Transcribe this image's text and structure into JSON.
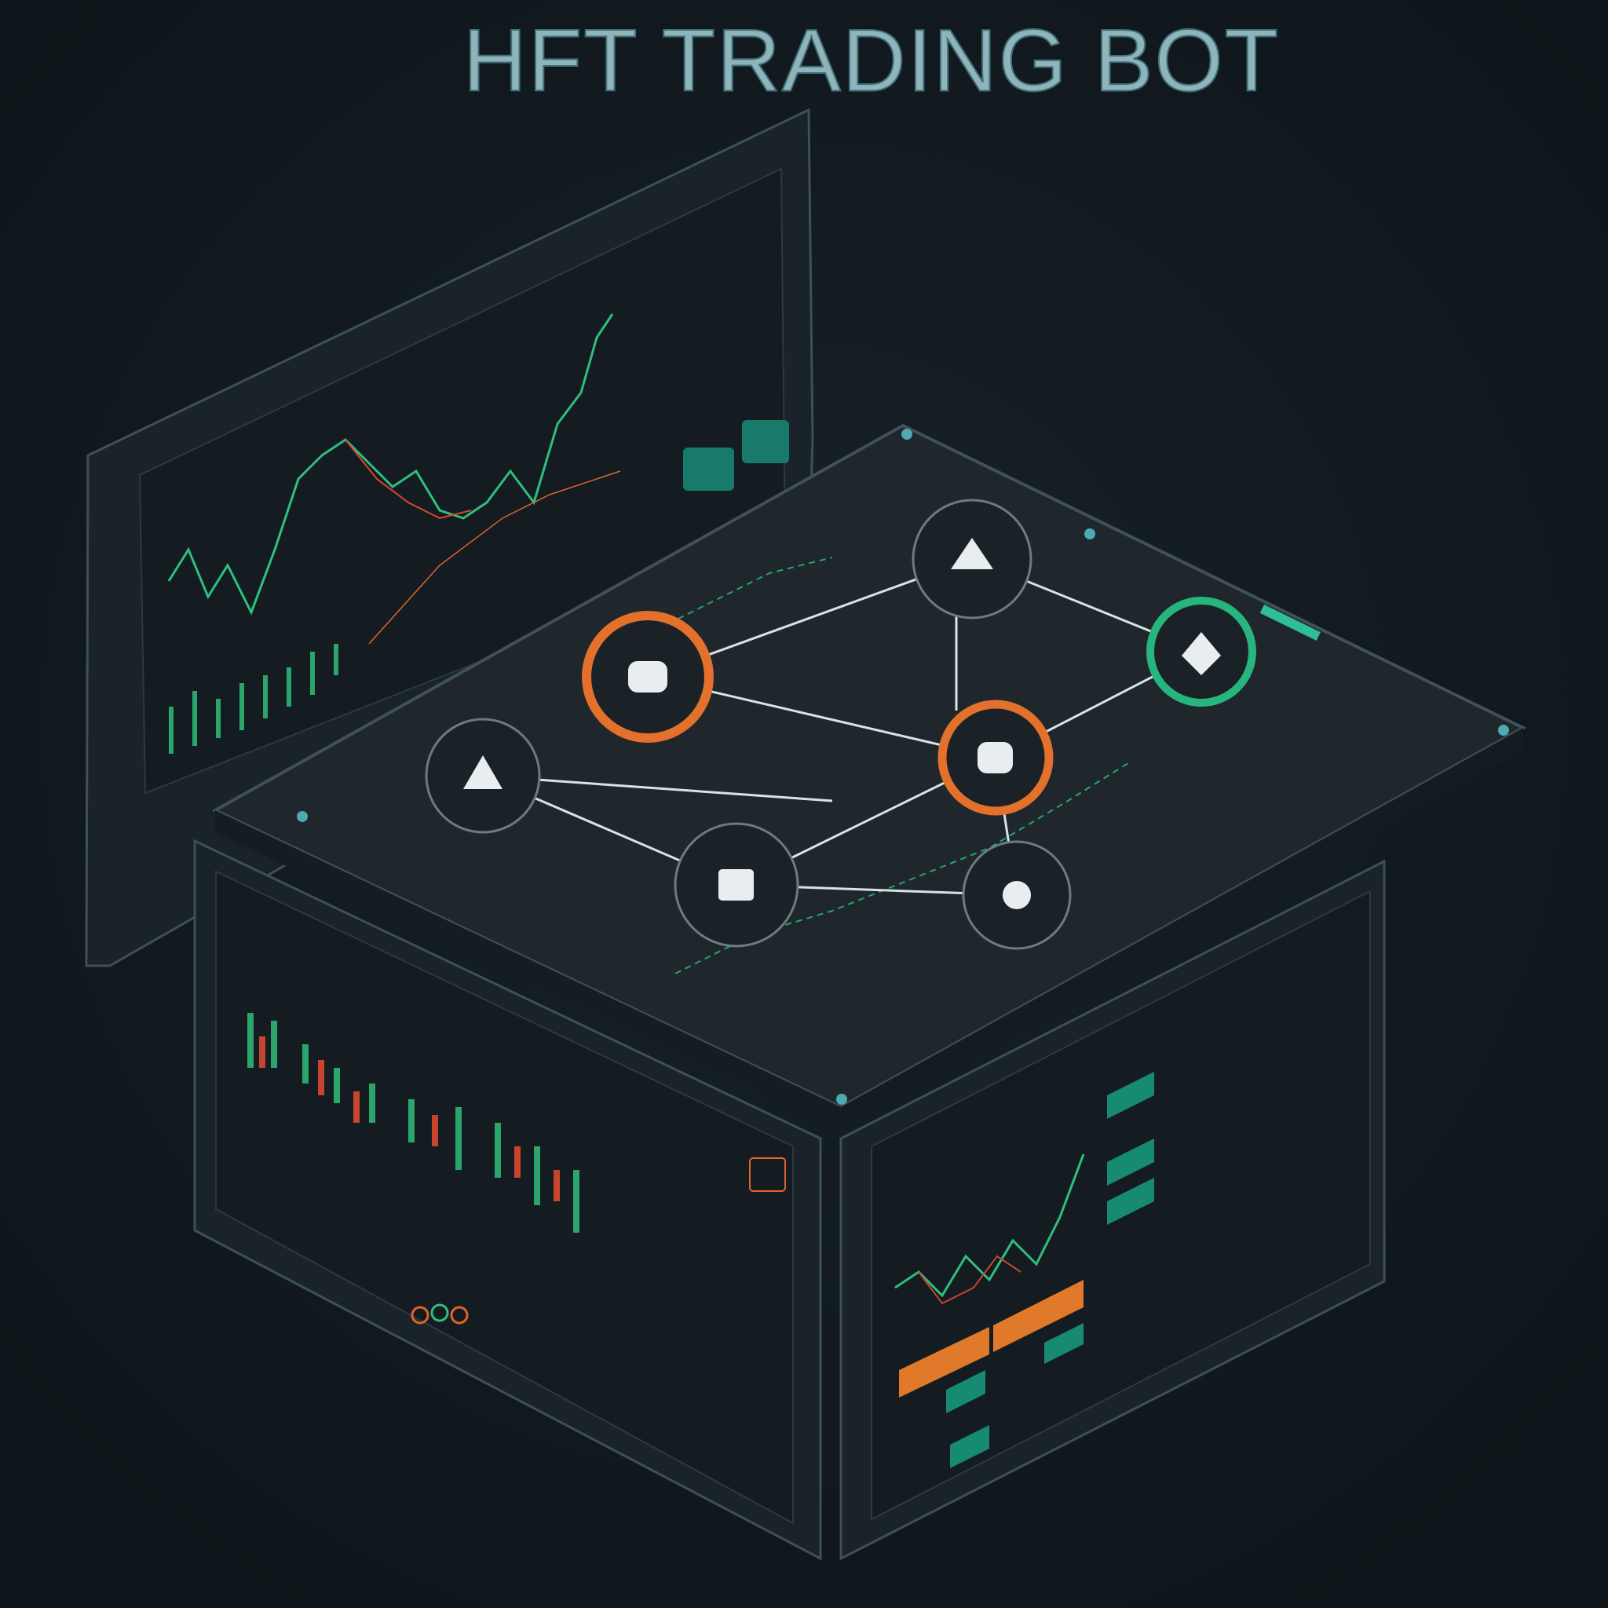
{
  "title": "HFT TRADING BOT"
}
